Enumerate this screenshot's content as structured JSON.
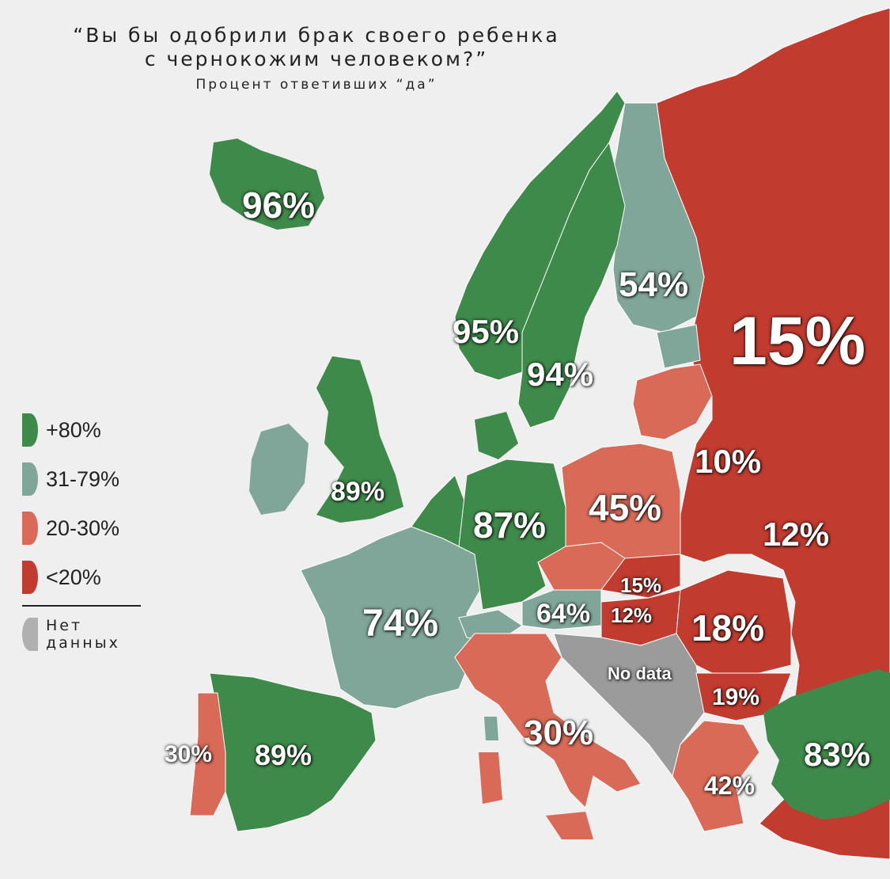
{
  "title": {
    "line1": "“Вы бы одобрили брак своего ребенка",
    "line2": "с чернокожим человеком?”",
    "line3": "Процент ответивших “да”"
  },
  "colors": {
    "green": "#3e8a4a",
    "teal": "#7fa699",
    "salmon": "#d96a57",
    "red": "#c23b2f",
    "gray": "#9b9b9b",
    "background": "#efefef"
  },
  "legend": {
    "items": [
      {
        "label": "+80%",
        "color": "#3e8a4a"
      },
      {
        "label": "31-79%",
        "color": "#7fa699"
      },
      {
        "label": "20-30%",
        "color": "#d96a57"
      },
      {
        "label": "<20%",
        "color": "#c23b2f"
      }
    ],
    "nodata": {
      "label": "Нет данных",
      "color": "#b0b0b0"
    }
  },
  "map_labels": {
    "iceland": "96%",
    "finland": "54%",
    "norway": "95%",
    "sweden": "94%",
    "russia": "15%",
    "belarus": "10%",
    "ukraine": "12%",
    "uk": "89%",
    "germany": "87%",
    "poland": "45%",
    "slovakia": "15%",
    "hungary": "12%",
    "austria": "64%",
    "france": "74%",
    "romania": "18%",
    "balkans": "No data",
    "bulgaria": "19%",
    "italy": "30%",
    "portugal": "30%",
    "spain": "89%",
    "greece": "42%",
    "turkey": "83%"
  }
}
